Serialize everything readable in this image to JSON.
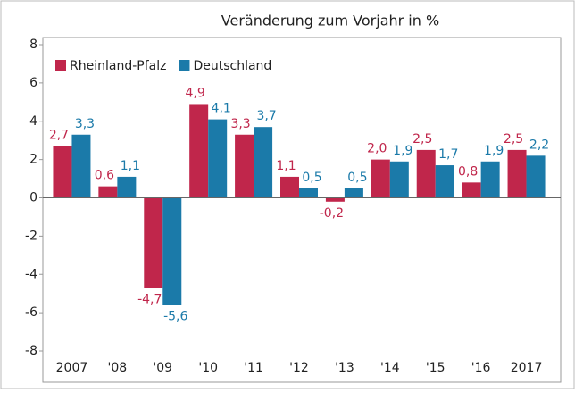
{
  "chart_data": {
    "type": "bar",
    "title": "Veränderung zum Vorjahr in %",
    "categories": [
      "2007",
      "'08",
      "'09",
      "'10",
      "'11",
      "'12",
      "'13",
      "'14",
      "'15",
      "'16",
      "2017"
    ],
    "series": [
      {
        "name": "Rheinland-Pfalz",
        "color": "#c0264b",
        "values": [
          2.7,
          0.6,
          -4.7,
          4.9,
          3.3,
          1.1,
          -0.2,
          2.0,
          2.5,
          0.8,
          2.5
        ],
        "value_labels": [
          "2,7",
          "0,6",
          "-4,7",
          "4,9",
          "3,3",
          "1,1",
          "-0,2",
          "2,0",
          "2,5",
          "0,8",
          "2,5"
        ]
      },
      {
        "name": "Deutschland",
        "color": "#1b7aa9",
        "values": [
          3.3,
          1.1,
          -5.6,
          4.1,
          3.7,
          0.5,
          0.5,
          1.9,
          1.7,
          1.9,
          2.2
        ],
        "value_labels": [
          "3,3",
          "1,1",
          "-5,6",
          "4,1",
          "3,7",
          "0,5",
          "0,5",
          "1,9",
          "1,7",
          "1,9",
          "2,2"
        ]
      }
    ],
    "ylim": [
      -8,
      8
    ],
    "yticks": [
      -8,
      -6,
      -4,
      -2,
      0,
      2,
      4,
      6,
      8
    ],
    "legend": "upper left"
  }
}
